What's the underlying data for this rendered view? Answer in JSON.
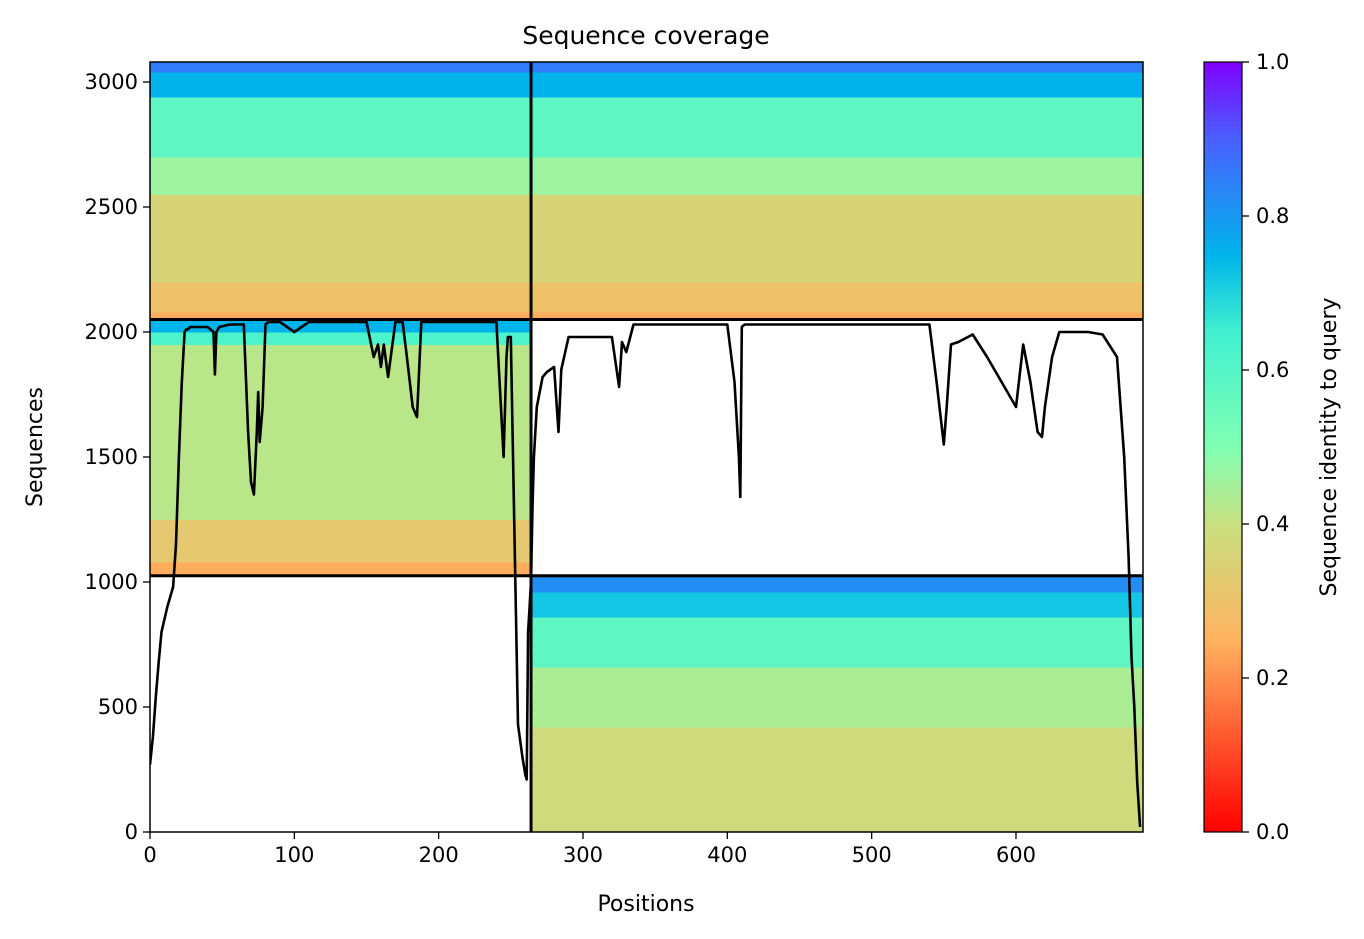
{
  "chart_data": {
    "type": "heatmap",
    "title": "Sequence coverage",
    "xlabel": "Positions",
    "ylabel": "Sequences",
    "xlim": [
      0,
      688
    ],
    "ylim": [
      0,
      3080
    ],
    "x_ticks": [
      0,
      100,
      200,
      300,
      400,
      500,
      600
    ],
    "y_ticks": [
      0,
      500,
      1000,
      1500,
      2000,
      2500,
      3000
    ],
    "colorbar": {
      "label": "Sequence identity to query",
      "range": [
        0.0,
        1.0
      ],
      "ticks": [
        "0.0",
        "0.2",
        "0.4",
        "0.6",
        "0.8",
        "1.0"
      ],
      "colormap": "rainbow_r"
    },
    "domain_boundaries": {
      "x": [
        264
      ],
      "y": [
        1025,
        2050
      ]
    },
    "blocks": [
      {
        "x": [
          0,
          264
        ],
        "y": [
          2050,
          3080
        ],
        "identity_bands": [
          {
            "y": [
              2050,
              2080
            ],
            "identity": 0.24
          },
          {
            "y": [
              2080,
              2200
            ],
            "identity": 0.3
          },
          {
            "y": [
              2200,
              2550
            ],
            "identity": 0.36
          },
          {
            "y": [
              2550,
              2700
            ],
            "identity": 0.46
          },
          {
            "y": [
              2700,
              2940
            ],
            "identity": 0.58
          },
          {
            "y": [
              2940,
              3040
            ],
            "identity": 0.75
          },
          {
            "y": [
              3040,
              3080
            ],
            "identity": 0.85
          }
        ]
      },
      {
        "x": [
          264,
          688
        ],
        "y": [
          2050,
          3080
        ],
        "identity_bands": [
          {
            "y": [
              2050,
              2080
            ],
            "identity": 0.24
          },
          {
            "y": [
              2080,
              2200
            ],
            "identity": 0.3
          },
          {
            "y": [
              2200,
              2550
            ],
            "identity": 0.36
          },
          {
            "y": [
              2550,
              2700
            ],
            "identity": 0.46
          },
          {
            "y": [
              2700,
              2940
            ],
            "identity": 0.58
          },
          {
            "y": [
              2940,
              3040
            ],
            "identity": 0.75
          },
          {
            "y": [
              3040,
              3080
            ],
            "identity": 0.85
          }
        ]
      },
      {
        "x": [
          0,
          264
        ],
        "y": [
          1025,
          2050
        ],
        "identity_bands": [
          {
            "y": [
              1025,
              1080
            ],
            "identity": 0.24
          },
          {
            "y": [
              1080,
              1250
            ],
            "identity": 0.32
          },
          {
            "y": [
              1250,
              1950
            ],
            "identity": 0.42
          },
          {
            "y": [
              1950,
              2000
            ],
            "identity": 0.62
          },
          {
            "y": [
              2000,
              2050
            ],
            "identity": 0.75
          }
        ]
      },
      {
        "x": [
          264,
          688
        ],
        "y": [
          0,
          1025
        ],
        "identity_bands": [
          {
            "y": [
              0,
              420
            ],
            "identity": 0.38
          },
          {
            "y": [
              420,
              660
            ],
            "identity": 0.44
          },
          {
            "y": [
              660,
              860
            ],
            "identity": 0.58
          },
          {
            "y": [
              860,
              960
            ],
            "identity": 0.72
          },
          {
            "y": [
              960,
              1025
            ],
            "identity": 0.82
          }
        ]
      }
    ],
    "coverage_line": {
      "x": [
        0,
        2,
        4,
        6,
        8,
        10,
        12,
        14,
        16,
        18,
        20,
        22,
        24,
        25,
        26,
        28,
        30,
        35,
        40,
        44,
        45,
        46,
        48,
        55,
        60,
        65,
        68,
        70,
        72,
        74,
        75,
        76,
        78,
        80,
        82,
        85,
        90,
        100,
        110,
        120,
        130,
        140,
        150,
        155,
        158,
        160,
        162,
        165,
        170,
        175,
        178,
        180,
        182,
        185,
        188,
        190,
        192,
        195,
        200,
        210,
        220,
        230,
        240,
        245,
        247,
        248,
        250,
        255,
        258,
        260,
        261,
        262,
        263,
        264,
        265,
        266,
        268,
        270,
        272,
        275,
        280,
        283,
        285,
        290,
        300,
        310,
        320,
        325,
        327,
        330,
        335,
        340,
        350,
        360,
        380,
        400,
        405,
        408,
        409,
        410,
        412,
        420,
        440,
        460,
        480,
        500,
        520,
        540,
        545,
        550,
        552,
        555,
        560,
        570,
        580,
        590,
        600,
        605,
        610,
        615,
        618,
        620,
        625,
        630,
        640,
        650,
        660,
        670,
        675,
        678,
        680,
        682,
        684,
        686
      ],
      "y": [
        270,
        380,
        540,
        680,
        800,
        850,
        900,
        940,
        980,
        1150,
        1500,
        1800,
        2000,
        2010,
        2010,
        2020,
        2020,
        2020,
        2020,
        2000,
        1830,
        2000,
        2020,
        2030,
        2030,
        2030,
        1600,
        1400,
        1350,
        1600,
        1760,
        1560,
        1700,
        2030,
        2040,
        2040,
        2040,
        2000,
        2040,
        2040,
        2040,
        2040,
        2040,
        1900,
        1950,
        1860,
        1950,
        1820,
        2040,
        2040,
        1900,
        1800,
        1700,
        1660,
        2040,
        2040,
        2040,
        2040,
        2040,
        2040,
        2040,
        2040,
        2040,
        1500,
        1900,
        1980,
        1980,
        430,
        300,
        230,
        210,
        800,
        900,
        1000,
        1300,
        1500,
        1700,
        1760,
        1820,
        1840,
        1860,
        1600,
        1850,
        1980,
        1980,
        1980,
        1980,
        1780,
        1960,
        1920,
        2030,
        2030,
        2030,
        2030,
        2030,
        2030,
        1800,
        1500,
        1340,
        2020,
        2030,
        2030,
        2030,
        2030,
        2030,
        2030,
        2030,
        2030,
        1800,
        1550,
        1700,
        1950,
        1960,
        1990,
        1900,
        1800,
        1700,
        1950,
        1800,
        1600,
        1580,
        1700,
        1900,
        2000,
        2000,
        2000,
        1990,
        1900,
        1500,
        1100,
        700,
        500,
        200,
        20
      ]
    }
  }
}
